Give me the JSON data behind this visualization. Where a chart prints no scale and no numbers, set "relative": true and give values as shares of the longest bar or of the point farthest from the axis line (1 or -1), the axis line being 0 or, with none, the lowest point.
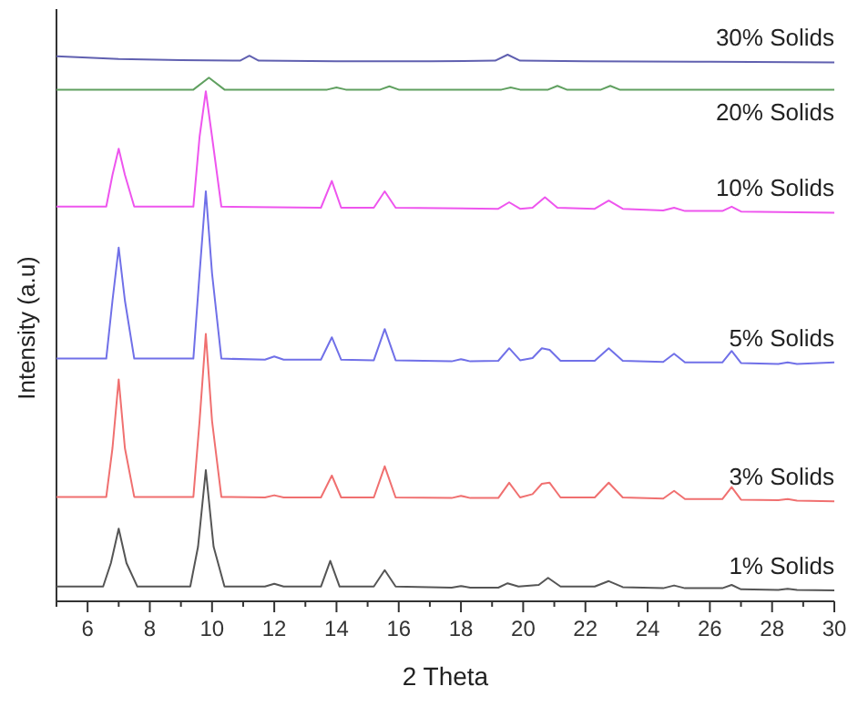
{
  "chart_data": {
    "type": "line",
    "xlabel": "2 Theta",
    "ylabel": "Intensity (a.u)",
    "relative": true,
    "marker": "none",
    "line_style": "solid",
    "grid": false,
    "xlim": [
      5,
      30
    ],
    "xticks": [
      {
        "value": 5,
        "label": null
      },
      6,
      {
        "value": 7,
        "label": null
      },
      8,
      {
        "value": 9,
        "label": null
      },
      10,
      {
        "value": 11,
        "label": null
      },
      12,
      {
        "value": 13,
        "label": null
      },
      14,
      {
        "value": 15,
        "label": null
      },
      16,
      {
        "value": 17,
        "label": null
      },
      18,
      {
        "value": 19,
        "label": null
      },
      20,
      {
        "value": 21,
        "label": null
      },
      22,
      {
        "value": 23,
        "label": null
      },
      24,
      {
        "value": 25,
        "label": null
      },
      26,
      {
        "value": 27,
        "label": null
      },
      28,
      {
        "value": 29,
        "label": null
      },
      30
    ],
    "series": [
      {
        "name": "1% Solids",
        "color": "#555555",
        "x": [
          5,
          6.5,
          6.75,
          7.0,
          7.25,
          7.6,
          9.3,
          9.55,
          9.8,
          10.05,
          10.4,
          11.7,
          12.0,
          12.3,
          13.5,
          13.8,
          14.1,
          15.2,
          15.55,
          15.9,
          17.7,
          18.0,
          18.3,
          19.2,
          19.5,
          19.85,
          20.5,
          20.8,
          21.2,
          22.3,
          22.75,
          23.2,
          24.5,
          24.85,
          25.2,
          26.4,
          26.7,
          27.0,
          28.2,
          28.5,
          28.8,
          30
        ],
        "values": [
          0.027,
          0.027,
          0.07,
          0.133,
          0.07,
          0.027,
          0.027,
          0.1,
          0.24,
          0.1,
          0.027,
          0.027,
          0.032,
          0.027,
          0.027,
          0.074,
          0.027,
          0.027,
          0.057,
          0.027,
          0.025,
          0.028,
          0.025,
          0.025,
          0.033,
          0.027,
          0.03,
          0.043,
          0.027,
          0.027,
          0.037,
          0.026,
          0.024,
          0.029,
          0.024,
          0.024,
          0.03,
          0.022,
          0.021,
          0.023,
          0.021,
          0.02
        ]
      },
      {
        "name": "3% Solids",
        "color": "#f07070",
        "x": [
          5,
          6.6,
          6.8,
          7.0,
          7.2,
          7.5,
          9.4,
          9.6,
          9.8,
          10.0,
          10.3,
          11.7,
          12.0,
          12.3,
          13.5,
          13.85,
          14.15,
          15.2,
          15.55,
          15.9,
          17.7,
          18.0,
          18.3,
          19.2,
          19.55,
          19.9,
          20.3,
          20.6,
          20.85,
          21.2,
          22.3,
          22.75,
          23.2,
          24.5,
          24.85,
          25.2,
          26.4,
          26.7,
          27.0,
          28.2,
          28.5,
          28.8,
          30
        ],
        "values": [
          0.191,
          0.191,
          0.28,
          0.406,
          0.28,
          0.191,
          0.191,
          0.33,
          0.489,
          0.33,
          0.191,
          0.19,
          0.194,
          0.19,
          0.19,
          0.23,
          0.19,
          0.19,
          0.247,
          0.19,
          0.189,
          0.193,
          0.189,
          0.189,
          0.217,
          0.19,
          0.196,
          0.215,
          0.217,
          0.19,
          0.19,
          0.217,
          0.19,
          0.188,
          0.202,
          0.187,
          0.187,
          0.209,
          0.186,
          0.185,
          0.187,
          0.184,
          0.183
        ]
      },
      {
        "name": "5% Solids",
        "color": "#7070e8",
        "x": [
          5,
          6.6,
          6.8,
          7.0,
          7.2,
          7.5,
          9.4,
          9.6,
          9.8,
          10.0,
          10.3,
          11.7,
          12.0,
          12.3,
          13.5,
          13.85,
          14.15,
          15.2,
          15.55,
          15.9,
          17.7,
          18.0,
          18.3,
          19.2,
          19.55,
          19.9,
          20.3,
          20.6,
          20.85,
          21.2,
          22.3,
          22.75,
          23.2,
          24.5,
          24.85,
          25.2,
          26.4,
          26.7,
          27.0,
          28.2,
          28.5,
          28.8,
          30
        ],
        "values": [
          0.444,
          0.444,
          0.55,
          0.647,
          0.55,
          0.444,
          0.444,
          0.6,
          0.75,
          0.6,
          0.444,
          0.442,
          0.448,
          0.442,
          0.442,
          0.483,
          0.442,
          0.441,
          0.498,
          0.441,
          0.439,
          0.443,
          0.439,
          0.44,
          0.463,
          0.441,
          0.445,
          0.463,
          0.46,
          0.44,
          0.44,
          0.463,
          0.44,
          0.438,
          0.453,
          0.437,
          0.437,
          0.458,
          0.436,
          0.434,
          0.437,
          0.434,
          0.437
        ]
      },
      {
        "name": "10% Solids",
        "color": "#ee55ee",
        "x": [
          5,
          6.6,
          6.8,
          7.0,
          7.2,
          7.5,
          9.4,
          9.6,
          9.8,
          10.0,
          10.3,
          13.5,
          13.85,
          14.15,
          15.2,
          15.55,
          15.9,
          19.2,
          19.55,
          19.9,
          20.3,
          20.7,
          21.1,
          22.3,
          22.75,
          23.2,
          24.5,
          24.85,
          25.2,
          26.4,
          26.7,
          27.0,
          30
        ],
        "values": [
          0.722,
          0.722,
          0.78,
          0.828,
          0.78,
          0.722,
          0.722,
          0.85,
          0.933,
          0.85,
          0.722,
          0.72,
          0.769,
          0.72,
          0.72,
          0.75,
          0.72,
          0.718,
          0.73,
          0.718,
          0.72,
          0.739,
          0.72,
          0.718,
          0.733,
          0.718,
          0.715,
          0.72,
          0.714,
          0.714,
          0.722,
          0.713,
          0.711
        ]
      },
      {
        "name": "20% Solids",
        "color": "#60a060",
        "x": [
          5,
          9.4,
          9.9,
          10.4,
          13.7,
          14.0,
          14.3,
          15.4,
          15.7,
          16.0,
          19.3,
          19.6,
          19.9,
          20.8,
          21.1,
          21.4,
          22.5,
          22.8,
          23.1,
          30
        ],
        "values": [
          0.936,
          0.936,
          0.958,
          0.936,
          0.936,
          0.94,
          0.936,
          0.936,
          0.942,
          0.936,
          0.936,
          0.94,
          0.936,
          0.936,
          0.943,
          0.936,
          0.936,
          0.943,
          0.936,
          0.936
        ]
      },
      {
        "name": "30% Solids",
        "color": "#6060b0",
        "x": [
          5,
          7,
          9,
          10.9,
          11.2,
          11.5,
          14,
          17,
          19.1,
          19.5,
          19.9,
          22,
          26,
          30
        ],
        "values": [
          0.997,
          0.992,
          0.99,
          0.989,
          0.998,
          0.989,
          0.988,
          0.988,
          0.989,
          1.0,
          0.989,
          0.988,
          0.987,
          0.986
        ]
      }
    ]
  }
}
